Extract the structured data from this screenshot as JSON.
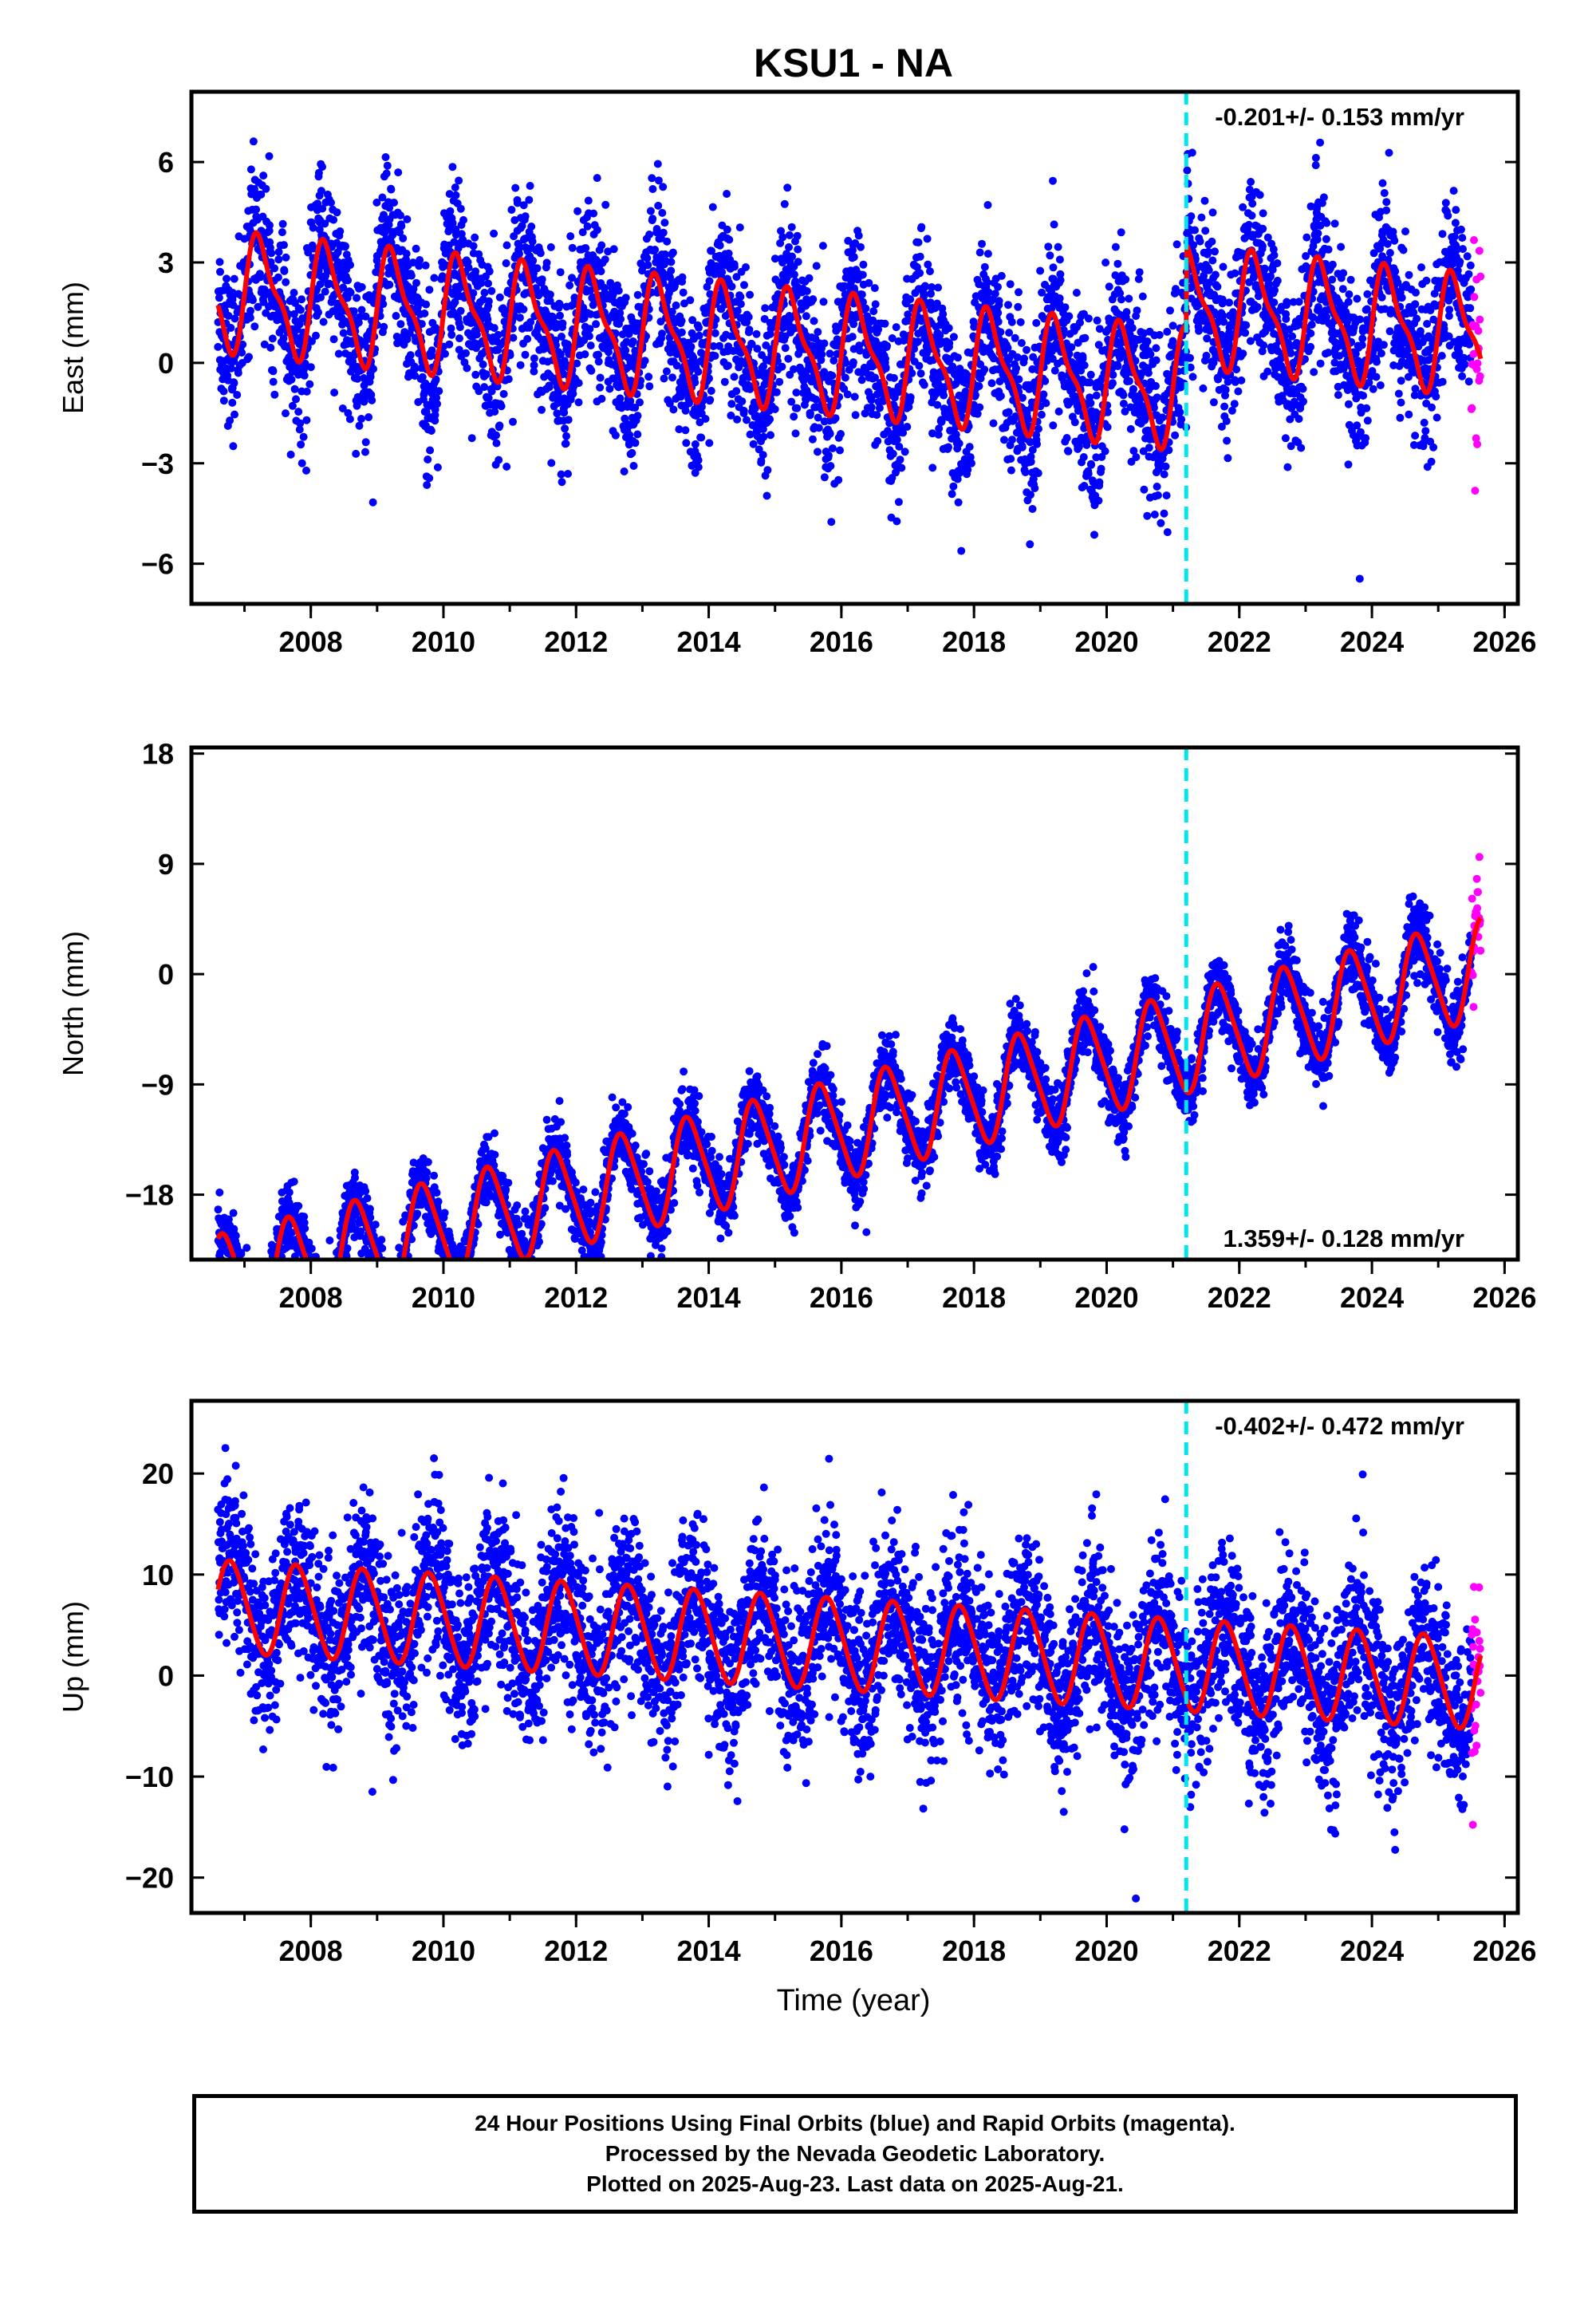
{
  "title": "KSU1 - NA",
  "xlabel": "Time (year)",
  "footer": {
    "line1": "24 Hour Positions Using Final Orbits (blue) and Rapid Orbits (magenta).",
    "line2": "Processed by the Nevada Geodetic Laboratory.",
    "line3": "Plotted on 2025-Aug-23. Last data on 2025-Aug-21."
  },
  "colors": {
    "final": "#0000ff",
    "rapid": "#ff00ff",
    "model": "#ff0000",
    "break": "#00e5ee"
  },
  "chart_data": [
    {
      "type": "scatter",
      "ylabel": "East (mm)",
      "annotation": "-0.201+/- 0.153 mm/yr",
      "annotation_position": "top-right",
      "xlim": [
        2006.2,
        2026.2
      ],
      "ylim": [
        -7.2,
        8.1
      ],
      "yticks": [
        -6,
        -3,
        0,
        3,
        6
      ],
      "xticks": [
        2008,
        2010,
        2012,
        2014,
        2016,
        2018,
        2020,
        2022,
        2024,
        2026
      ],
      "data_start": 2006.6,
      "data_end": 2025.64,
      "rapid_start": 2025.5,
      "break_year": 2021.2,
      "model": {
        "offset": 0.45,
        "rate": -0.201,
        "annual": 1.6,
        "semiannual": 0.55,
        "phase": 0.0,
        "break_offset": 2.5
      },
      "scatter_sd": 1.2
    },
    {
      "type": "scatter",
      "ylabel": "North (mm)",
      "annotation": "1.359+/- 0.128 mm/yr",
      "annotation_position": "bottom-right",
      "xlim": [
        2006.2,
        2026.2
      ],
      "ylim": [
        -23.3,
        18.5
      ],
      "yticks": [
        -18,
        -9,
        0,
        9,
        18
      ],
      "xticks": [
        2008,
        2010,
        2012,
        2014,
        2016,
        2018,
        2020,
        2022,
        2024,
        2026
      ],
      "data_start": 2006.6,
      "data_end": 2025.64,
      "rapid_start": 2025.5,
      "break_year": 2021.2,
      "model": {
        "offset": -14.0,
        "rate": 1.359,
        "annual": 4.0,
        "semiannual": 0.6,
        "phase": 0.45,
        "break_offset": 0.0
      },
      "scatter_sd": 1.4
    },
    {
      "type": "scatter",
      "ylabel": "Up (mm)",
      "annotation": "-0.402+/- 0.472 mm/yr",
      "annotation_position": "top-right",
      "xlim": [
        2006.2,
        2026.2
      ],
      "ylim": [
        -23.5,
        27.2
      ],
      "yticks": [
        -20,
        -10,
        0,
        10,
        20
      ],
      "xticks": [
        2008,
        2010,
        2012,
        2014,
        2016,
        2018,
        2020,
        2022,
        2024,
        2026
      ],
      "data_start": 2006.6,
      "data_end": 2025.64,
      "rapid_start": 2025.5,
      "break_year": 2021.2,
      "model": {
        "offset": 3.5,
        "rate": -0.402,
        "annual": 4.5,
        "semiannual": 0.4,
        "phase": 0.55,
        "break_offset": 0.0
      },
      "scatter_sd": 4.2
    }
  ]
}
